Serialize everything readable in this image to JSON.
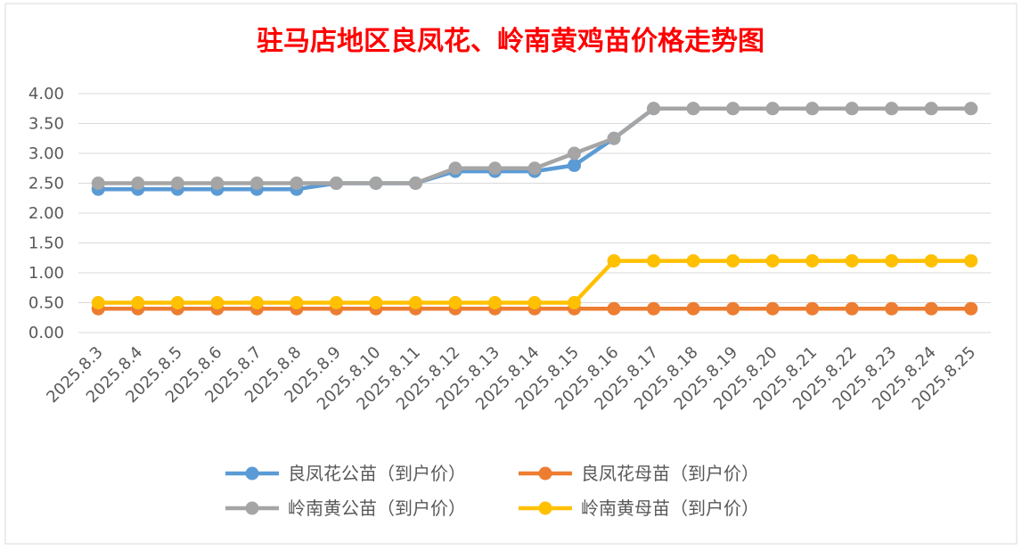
{
  "chart_data": {
    "type": "line",
    "title": "驻马店地区良凤花、岭南黄鸡苗价格走势图",
    "xlabel": "",
    "ylabel": "",
    "ylim": [
      0,
      4
    ],
    "yticks": [
      "0.00",
      "0.50",
      "1.00",
      "1.50",
      "2.00",
      "2.50",
      "3.00",
      "3.50",
      "4.00"
    ],
    "grid": true,
    "legend_position": "bottom",
    "categories": [
      "2025.8.3",
      "2025.8.4",
      "2025.8.5",
      "2025.8.6",
      "2025.8.7",
      "2025.8.8",
      "2025.8.9",
      "2025.8.10",
      "2025.8.11",
      "2025.8.12",
      "2025.8.13",
      "2025.8.14",
      "2025.8.15",
      "2025.8.16",
      "2025.8.17",
      "2025.8.18",
      "2025.8.19",
      "2025.8.20",
      "2025.8.21",
      "2025.8.22",
      "2025.8.23",
      "2025.8.24",
      "2025.8.25"
    ],
    "series": [
      {
        "name": "良凤花公苗（到户价）",
        "color": "#5b9bd5",
        "values": [
          2.4,
          2.4,
          2.4,
          2.4,
          2.4,
          2.4,
          2.5,
          2.5,
          2.5,
          2.7,
          2.7,
          2.7,
          2.8,
          3.25,
          3.75,
          3.75,
          3.75,
          3.75,
          3.75,
          3.75,
          3.75,
          3.75,
          3.75
        ]
      },
      {
        "name": "良凤花母苗（到户价）",
        "color": "#ed7d31",
        "values": [
          0.4,
          0.4,
          0.4,
          0.4,
          0.4,
          0.4,
          0.4,
          0.4,
          0.4,
          0.4,
          0.4,
          0.4,
          0.4,
          0.4,
          0.4,
          0.4,
          0.4,
          0.4,
          0.4,
          0.4,
          0.4,
          0.4,
          0.4
        ]
      },
      {
        "name": "岭南黄公苗（到户价）",
        "color": "#a5a5a5",
        "values": [
          2.5,
          2.5,
          2.5,
          2.5,
          2.5,
          2.5,
          2.5,
          2.5,
          2.5,
          2.75,
          2.75,
          2.75,
          3.0,
          3.25,
          3.75,
          3.75,
          3.75,
          3.75,
          3.75,
          3.75,
          3.75,
          3.75,
          3.75
        ]
      },
      {
        "name": "岭南黄母苗（到户价）",
        "color": "#ffc000",
        "values": [
          0.5,
          0.5,
          0.5,
          0.5,
          0.5,
          0.5,
          0.5,
          0.5,
          0.5,
          0.5,
          0.5,
          0.5,
          0.5,
          1.2,
          1.2,
          1.2,
          1.2,
          1.2,
          1.2,
          1.2,
          1.2,
          1.2,
          1.2
        ]
      }
    ],
    "draw_order": [
      0,
      2,
      1,
      3
    ]
  }
}
